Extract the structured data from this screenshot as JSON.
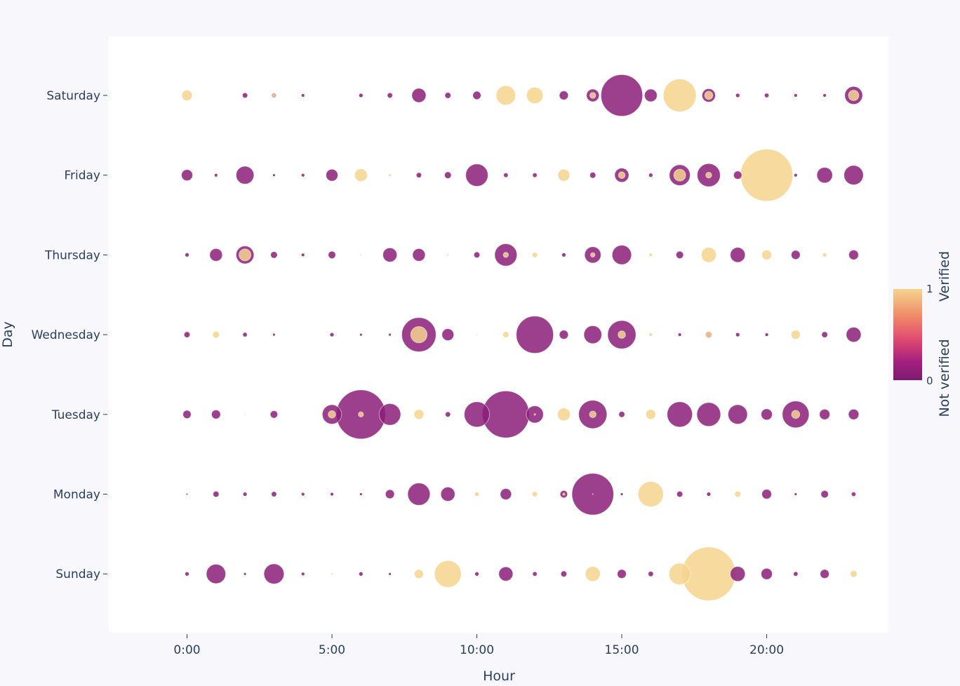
{
  "chart_data": {
    "type": "scatter",
    "xlabel": "Hour",
    "ylabel": "Day",
    "x_ticks": [
      {
        "value": 0,
        "label": "0:00"
      },
      {
        "value": 5,
        "label": "5:00"
      },
      {
        "value": 10,
        "label": "10:00"
      },
      {
        "value": 15,
        "label": "15:00"
      },
      {
        "value": 20,
        "label": "20:00"
      }
    ],
    "xlim": [
      -2.7,
      24.2
    ],
    "days": [
      "Sunday",
      "Monday",
      "Tuesday",
      "Wednesday",
      "Thursday",
      "Friday",
      "Saturday"
    ],
    "colorbar": {
      "title_high": "Verified",
      "title_low": "Not verified",
      "tick_high": "1",
      "tick_low": "0",
      "colors": [
        "#f5d48d",
        "#ef8a6a",
        "#e04a6f",
        "#a3207f",
        "#7c1b6f"
      ]
    },
    "series": [
      {
        "name": "Not verified",
        "color": "#8b1f7a",
        "points": [
          [
            "Saturday",
            2,
            0.7
          ],
          [
            "Saturday",
            3,
            0.6
          ],
          [
            "Saturday",
            4,
            0.4
          ],
          [
            "Saturday",
            6,
            0.5
          ],
          [
            "Saturday",
            7,
            0.7
          ],
          [
            "Saturday",
            8,
            1.9
          ],
          [
            "Saturday",
            9,
            0.8
          ],
          [
            "Saturday",
            10,
            1.1
          ],
          [
            "Saturday",
            13,
            1.2
          ],
          [
            "Saturday",
            14,
            1.7
          ],
          [
            "Saturday",
            15,
            5.6
          ],
          [
            "Saturday",
            16,
            1.7
          ],
          [
            "Saturday",
            18,
            1.8
          ],
          [
            "Saturday",
            19,
            0.5
          ],
          [
            "Saturday",
            20,
            0.6
          ],
          [
            "Saturday",
            21,
            0.4
          ],
          [
            "Saturday",
            22,
            0.4
          ],
          [
            "Saturday",
            23,
            2.4
          ],
          [
            "Friday",
            0,
            1.5
          ],
          [
            "Friday",
            1,
            0.4
          ],
          [
            "Friday",
            2,
            2.4
          ],
          [
            "Friday",
            3,
            0.3
          ],
          [
            "Friday",
            4,
            0.4
          ],
          [
            "Friday",
            5,
            1.6
          ],
          [
            "Friday",
            8,
            0.7
          ],
          [
            "Friday",
            9,
            0.9
          ],
          [
            "Friday",
            10,
            3.0
          ],
          [
            "Friday",
            11,
            0.6
          ],
          [
            "Friday",
            12,
            0.6
          ],
          [
            "Friday",
            14,
            0.8
          ],
          [
            "Friday",
            15,
            1.9
          ],
          [
            "Friday",
            16,
            0.5
          ],
          [
            "Friday",
            17,
            2.8
          ],
          [
            "Friday",
            18,
            3.1
          ],
          [
            "Friday",
            19,
            1.1
          ],
          [
            "Friday",
            21,
            0.4
          ],
          [
            "Friday",
            22,
            2.1
          ],
          [
            "Friday",
            23,
            2.6
          ],
          [
            "Thursday",
            0,
            0.5
          ],
          [
            "Thursday",
            1,
            1.7
          ],
          [
            "Thursday",
            2,
            2.4
          ],
          [
            "Thursday",
            3,
            0.9
          ],
          [
            "Thursday",
            4,
            0.4
          ],
          [
            "Thursday",
            5,
            1.0
          ],
          [
            "Thursday",
            7,
            1.9
          ],
          [
            "Thursday",
            8,
            1.7
          ],
          [
            "Thursday",
            10,
            0.8
          ],
          [
            "Thursday",
            11,
            3.0
          ],
          [
            "Thursday",
            13,
            0.5
          ],
          [
            "Thursday",
            14,
            2.2
          ],
          [
            "Thursday",
            15,
            2.6
          ],
          [
            "Thursday",
            17,
            1.0
          ],
          [
            "Thursday",
            19,
            2.0
          ],
          [
            "Thursday",
            21,
            1.2
          ],
          [
            "Thursday",
            23,
            1.3
          ],
          [
            "Wednesday",
            0,
            0.8
          ],
          [
            "Wednesday",
            2,
            0.6
          ],
          [
            "Wednesday",
            3,
            0.3
          ],
          [
            "Wednesday",
            5,
            0.5
          ],
          [
            "Wednesday",
            6,
            0.3
          ],
          [
            "Wednesday",
            7,
            0.3
          ],
          [
            "Wednesday",
            8,
            4.6
          ],
          [
            "Wednesday",
            9,
            1.6
          ],
          [
            "Wednesday",
            12,
            5.0
          ],
          [
            "Wednesday",
            13,
            1.2
          ],
          [
            "Wednesday",
            14,
            2.4
          ],
          [
            "Wednesday",
            15,
            3.8
          ],
          [
            "Wednesday",
            17,
            0.4
          ],
          [
            "Wednesday",
            18,
            0.9
          ],
          [
            "Wednesday",
            19,
            0.5
          ],
          [
            "Wednesday",
            20,
            0.4
          ],
          [
            "Wednesday",
            22,
            0.8
          ],
          [
            "Wednesday",
            23,
            2.0
          ],
          [
            "Tuesday",
            0,
            1.1
          ],
          [
            "Tuesday",
            1,
            1.2
          ],
          [
            "Tuesday",
            3,
            1.0
          ],
          [
            "Tuesday",
            5,
            2.6
          ],
          [
            "Tuesday",
            6,
            6.6
          ],
          [
            "Tuesday",
            7,
            2.9
          ],
          [
            "Tuesday",
            9,
            0.7
          ],
          [
            "Tuesday",
            10,
            3.4
          ],
          [
            "Tuesday",
            11,
            6.3
          ],
          [
            "Tuesday",
            12,
            2.3
          ],
          [
            "Tuesday",
            14,
            3.8
          ],
          [
            "Tuesday",
            15,
            0.8
          ],
          [
            "Tuesday",
            17,
            3.4
          ],
          [
            "Tuesday",
            18,
            3.2
          ],
          [
            "Tuesday",
            19,
            2.6
          ],
          [
            "Tuesday",
            20,
            1.5
          ],
          [
            "Tuesday",
            21,
            3.6
          ],
          [
            "Tuesday",
            22,
            1.4
          ],
          [
            "Tuesday",
            23,
            1.4
          ],
          [
            "Monday",
            0,
            0.2
          ],
          [
            "Monday",
            1,
            0.8
          ],
          [
            "Monday",
            2,
            0.5
          ],
          [
            "Monday",
            3,
            0.7
          ],
          [
            "Monday",
            4,
            0.4
          ],
          [
            "Monday",
            5,
            0.4
          ],
          [
            "Monday",
            6,
            0.3
          ],
          [
            "Monday",
            7,
            1.2
          ],
          [
            "Monday",
            8,
            3.0
          ],
          [
            "Monday",
            9,
            1.9
          ],
          [
            "Monday",
            11,
            1.5
          ],
          [
            "Monday",
            13,
            1.0
          ],
          [
            "Monday",
            14,
            5.6
          ],
          [
            "Monday",
            15,
            0.3
          ],
          [
            "Monday",
            17,
            0.8
          ],
          [
            "Monday",
            18,
            0.5
          ],
          [
            "Monday",
            20,
            1.3
          ],
          [
            "Monday",
            21,
            0.3
          ],
          [
            "Monday",
            22,
            1.0
          ],
          [
            "Monday",
            23,
            0.6
          ],
          [
            "Sunday",
            0,
            0.5
          ],
          [
            "Sunday",
            1,
            2.6
          ],
          [
            "Sunday",
            2,
            0.3
          ],
          [
            "Sunday",
            3,
            2.7
          ],
          [
            "Sunday",
            4,
            0.4
          ],
          [
            "Sunday",
            6,
            0.5
          ],
          [
            "Sunday",
            7,
            0.3
          ],
          [
            "Sunday",
            10,
            0.5
          ],
          [
            "Sunday",
            11,
            1.9
          ],
          [
            "Sunday",
            12,
            0.6
          ],
          [
            "Sunday",
            13,
            0.8
          ],
          [
            "Sunday",
            15,
            1.2
          ],
          [
            "Sunday",
            16,
            0.7
          ],
          [
            "Sunday",
            19,
            2.0
          ],
          [
            "Sunday",
            20,
            1.5
          ],
          [
            "Sunday",
            21,
            0.6
          ],
          [
            "Sunday",
            22,
            1.2
          ]
        ]
      },
      {
        "name": "Verified",
        "color": "#f5d48d",
        "points": [
          [
            "Saturday",
            0,
            1.4
          ],
          [
            "Saturday",
            3,
            0.5
          ],
          [
            "Saturday",
            11,
            2.6
          ],
          [
            "Saturday",
            12,
            2.2
          ],
          [
            "Saturday",
            14,
            0.8
          ],
          [
            "Saturday",
            17,
            4.4
          ],
          [
            "Saturday",
            18,
            1.1
          ],
          [
            "Saturday",
            23,
            1.4
          ],
          [
            "Friday",
            6,
            1.7
          ],
          [
            "Friday",
            7,
            0.3
          ],
          [
            "Friday",
            13,
            1.6
          ],
          [
            "Friday",
            15,
            0.9
          ],
          [
            "Friday",
            17,
            1.6
          ],
          [
            "Friday",
            18,
            0.8
          ],
          [
            "Friday",
            20,
            7.0
          ],
          [
            "Thursday",
            2,
            1.6
          ],
          [
            "Thursday",
            6,
            0.1
          ],
          [
            "Thursday",
            9,
            0.2
          ],
          [
            "Thursday",
            11,
            0.7
          ],
          [
            "Thursday",
            12,
            0.7
          ],
          [
            "Thursday",
            14,
            0.6
          ],
          [
            "Thursday",
            16,
            0.4
          ],
          [
            "Thursday",
            18,
            2.0
          ],
          [
            "Thursday",
            20,
            1.3
          ],
          [
            "Thursday",
            22,
            0.5
          ],
          [
            "Wednesday",
            1,
            0.9
          ],
          [
            "Wednesday",
            8,
            2.2
          ],
          [
            "Wednesday",
            10,
            0.1
          ],
          [
            "Wednesday",
            11,
            0.8
          ],
          [
            "Wednesday",
            15,
            1.0
          ],
          [
            "Wednesday",
            16,
            0.4
          ],
          [
            "Wednesday",
            18,
            0.8
          ],
          [
            "Wednesday",
            21,
            1.2
          ],
          [
            "Tuesday",
            2,
            0.1
          ],
          [
            "Tuesday",
            5,
            1.0
          ],
          [
            "Tuesday",
            6,
            0.7
          ],
          [
            "Tuesday",
            8,
            1.3
          ],
          [
            "Tuesday",
            12,
            0.3
          ],
          [
            "Tuesday",
            13,
            1.7
          ],
          [
            "Tuesday",
            14,
            0.9
          ],
          [
            "Tuesday",
            16,
            1.3
          ],
          [
            "Tuesday",
            21,
            1.1
          ],
          [
            "Monday",
            10,
            0.6
          ],
          [
            "Monday",
            12,
            0.7
          ],
          [
            "Monday",
            13,
            0.4
          ],
          [
            "Monday",
            14,
            0.2
          ],
          [
            "Monday",
            16,
            3.4
          ],
          [
            "Monday",
            19,
            0.8
          ],
          [
            "Sunday",
            5,
            0.2
          ],
          [
            "Sunday",
            8,
            1.2
          ],
          [
            "Sunday",
            9,
            3.6
          ],
          [
            "Sunday",
            14,
            2.0
          ],
          [
            "Sunday",
            17,
            2.9
          ],
          [
            "Sunday",
            18,
            7.2
          ],
          [
            "Sunday",
            23,
            0.9
          ]
        ]
      }
    ]
  }
}
